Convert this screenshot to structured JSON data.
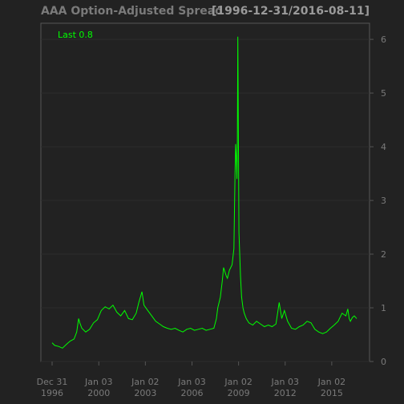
{
  "chart_data": {
    "type": "line",
    "title": "AAA Option-Adjusted Spread",
    "date_range": "[1996-12-31/2016-08-11]",
    "legend": "Last 0.8",
    "ylim": [
      0,
      6.3
    ],
    "xlim": [
      "1996-12-31",
      "2016-08-11"
    ],
    "grid": true,
    "legend_position": "top-left",
    "y_ticks": [
      "0",
      "1",
      "2",
      "3",
      "4",
      "5",
      "6"
    ],
    "x_ticks": [
      {
        "date": "1996-12-31",
        "line1": "Dec 31",
        "line2": "1996"
      },
      {
        "date": "2000-01-03",
        "line1": "Jan 03",
        "line2": "2000"
      },
      {
        "date": "2003-01-02",
        "line1": "Jan 02",
        "line2": "2003"
      },
      {
        "date": "2006-01-03",
        "line1": "Jan 03",
        "line2": "2006"
      },
      {
        "date": "2009-01-02",
        "line1": "Jan 02",
        "line2": "2009"
      },
      {
        "date": "2012-01-03",
        "line1": "Jan 03",
        "line2": "2012"
      },
      {
        "date": "2015-01-02",
        "line1": "Jan 02",
        "line2": "2015"
      }
    ],
    "colors": {
      "background": "#222222",
      "line": "#00ff00",
      "grid": "#2c2c2c",
      "axis": "#555555",
      "text": "#7a7a7a"
    },
    "series": [
      {
        "x": [
          "1996-12-31",
          "1997-03-01",
          "1997-06-01",
          "1997-09-01",
          "1997-12-01",
          "1998-03-01",
          "1998-06-01",
          "1998-08-01",
          "1998-09-15",
          "1998-10-15",
          "1998-12-01",
          "1999-03-01",
          "1999-06-01",
          "1999-09-01",
          "1999-12-01",
          "2000-03-01",
          "2000-06-01",
          "2000-09-01",
          "2000-12-01",
          "2001-03-01",
          "2001-06-01",
          "2001-09-01",
          "2001-12-01",
          "2002-03-01",
          "2002-06-01",
          "2002-08-01",
          "2002-10-15",
          "2002-12-01",
          "2003-03-01",
          "2003-06-01",
          "2003-09-01",
          "2003-12-01",
          "2004-03-01",
          "2004-06-01",
          "2004-09-01",
          "2004-12-01",
          "2005-03-01",
          "2005-06-01",
          "2005-09-01",
          "2005-12-01",
          "2006-03-01",
          "2006-06-01",
          "2006-09-01",
          "2006-12-01",
          "2007-03-01",
          "2007-06-01",
          "2007-08-01",
          "2007-09-01",
          "2007-11-01",
          "2007-12-15",
          "2008-01-15",
          "2008-03-15",
          "2008-04-15",
          "2008-06-01",
          "2008-08-01",
          "2008-09-15",
          "2008-10-10",
          "2008-10-25",
          "2008-11-10",
          "2008-11-25",
          "2008-12-05",
          "2008-12-15",
          "2009-01-10",
          "2009-02-15",
          "2009-03-15",
          "2009-04-15",
          "2009-05-15",
          "2009-07-01",
          "2009-09-01",
          "2009-12-01",
          "2010-03-01",
          "2010-06-01",
          "2010-09-01",
          "2010-12-01",
          "2011-03-01",
          "2011-06-01",
          "2011-08-15",
          "2011-10-15",
          "2011-12-15",
          "2012-03-01",
          "2012-06-01",
          "2012-09-01",
          "2012-12-01",
          "2013-03-01",
          "2013-06-01",
          "2013-09-01",
          "2013-12-01",
          "2014-03-01",
          "2014-06-01",
          "2014-09-01",
          "2014-12-01",
          "2015-03-01",
          "2015-06-01",
          "2015-09-01",
          "2015-12-01",
          "2016-01-15",
          "2016-02-15",
          "2016-03-15",
          "2016-05-01",
          "2016-06-15",
          "2016-08-11"
        ],
        "values": [
          0.35,
          0.3,
          0.28,
          0.25,
          0.32,
          0.38,
          0.42,
          0.55,
          0.8,
          0.72,
          0.62,
          0.55,
          0.6,
          0.72,
          0.78,
          0.95,
          1.02,
          0.98,
          1.05,
          0.92,
          0.85,
          0.95,
          0.8,
          0.78,
          0.9,
          1.1,
          1.3,
          1.05,
          0.95,
          0.85,
          0.75,
          0.7,
          0.65,
          0.62,
          0.6,
          0.62,
          0.58,
          0.55,
          0.6,
          0.62,
          0.58,
          0.6,
          0.62,
          0.58,
          0.6,
          0.62,
          0.8,
          1.0,
          1.2,
          1.5,
          1.75,
          1.6,
          1.55,
          1.7,
          1.8,
          2.1,
          3.5,
          4.05,
          3.8,
          3.4,
          4.0,
          6.05,
          2.4,
          1.6,
          1.2,
          1.0,
          0.9,
          0.8,
          0.72,
          0.68,
          0.75,
          0.7,
          0.65,
          0.68,
          0.65,
          0.7,
          1.1,
          0.8,
          0.95,
          0.75,
          0.62,
          0.6,
          0.65,
          0.68,
          0.75,
          0.72,
          0.6,
          0.55,
          0.52,
          0.55,
          0.62,
          0.68,
          0.75,
          0.9,
          0.85,
          0.98,
          0.8,
          0.75,
          0.82,
          0.85,
          0.8
        ]
      }
    ]
  }
}
